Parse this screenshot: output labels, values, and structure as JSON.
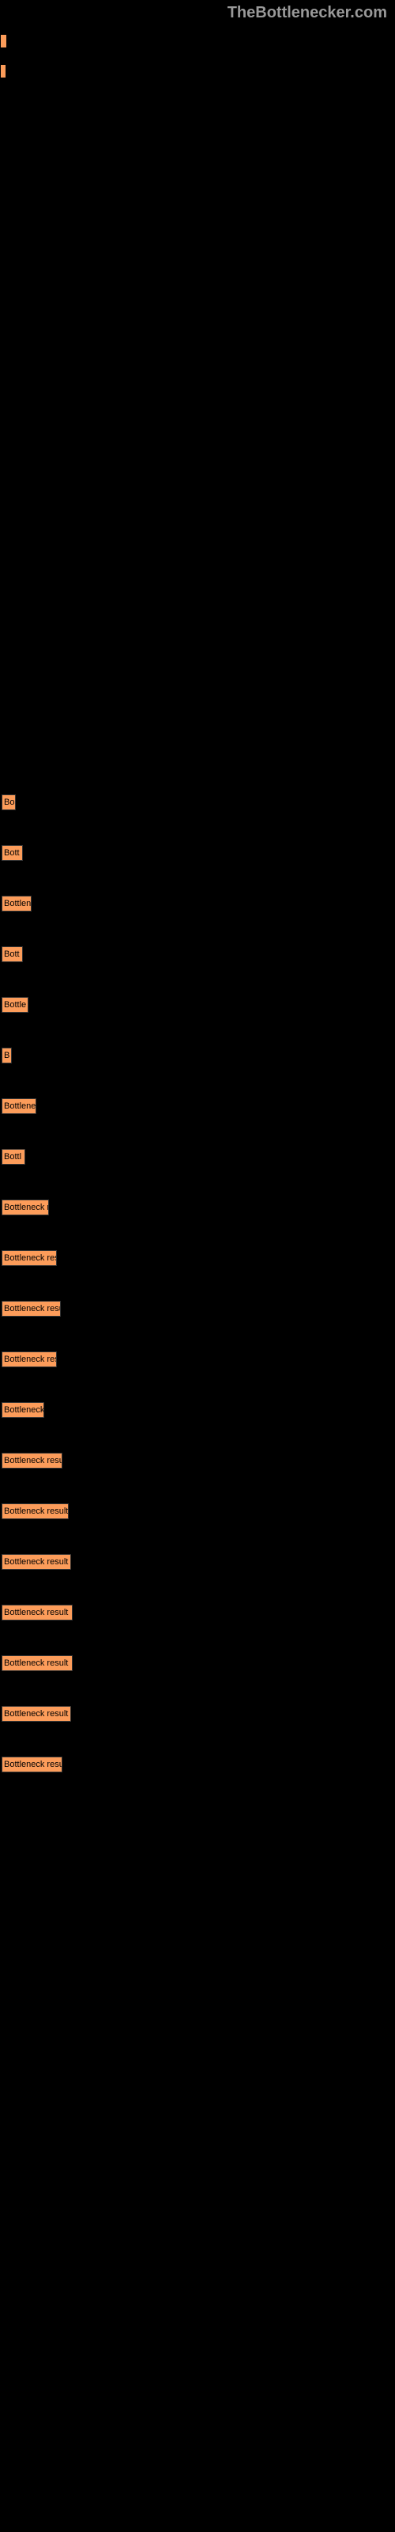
{
  "header": {
    "logo_text": "TheBottlenecker.com"
  },
  "top_bars": [
    {
      "width": 9
    },
    {
      "width": 8
    }
  ],
  "results": [
    {
      "label": "Bo",
      "width": 18
    },
    {
      "label": "Bott",
      "width": 27
    },
    {
      "label": "Bottlen",
      "width": 38
    },
    {
      "label": "Bott",
      "width": 27
    },
    {
      "label": "Bottle",
      "width": 34
    },
    {
      "label": "B",
      "width": 13
    },
    {
      "label": "Bottlene",
      "width": 44
    },
    {
      "label": "Bottl",
      "width": 30
    },
    {
      "label": "Bottleneck r",
      "width": 60
    },
    {
      "label": "Bottleneck res",
      "width": 70
    },
    {
      "label": "Bottleneck resu",
      "width": 75
    },
    {
      "label": "Bottleneck res",
      "width": 70
    },
    {
      "label": "Bottleneck",
      "width": 54
    },
    {
      "label": "Bottleneck resu",
      "width": 77
    },
    {
      "label": "Bottleneck result",
      "width": 85
    },
    {
      "label": "Bottleneck result",
      "width": 88
    },
    {
      "label": "Bottleneck result",
      "width": 90
    },
    {
      "label": "Bottleneck result",
      "width": 90
    },
    {
      "label": "Bottleneck result",
      "width": 88
    },
    {
      "label": "Bottleneck resu",
      "width": 77
    }
  ],
  "colors": {
    "background": "#000000",
    "bar_fill": "#fc9c5a",
    "text_header": "#999999",
    "text_bar": "#000000"
  }
}
